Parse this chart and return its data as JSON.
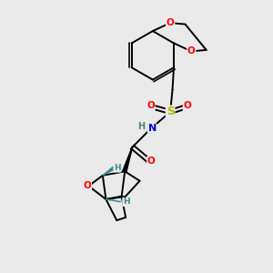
{
  "background_color": "#eaeaea",
  "figsize": [
    3.0,
    3.0
  ],
  "dpi": 100,
  "atom_colors": {
    "O": "#ff0000",
    "N": "#0000cd",
    "S": "#b8b800",
    "H": "#3a8a8a",
    "C": "#000000"
  },
  "bond_color": "#000000",
  "bond_width": 1.4
}
